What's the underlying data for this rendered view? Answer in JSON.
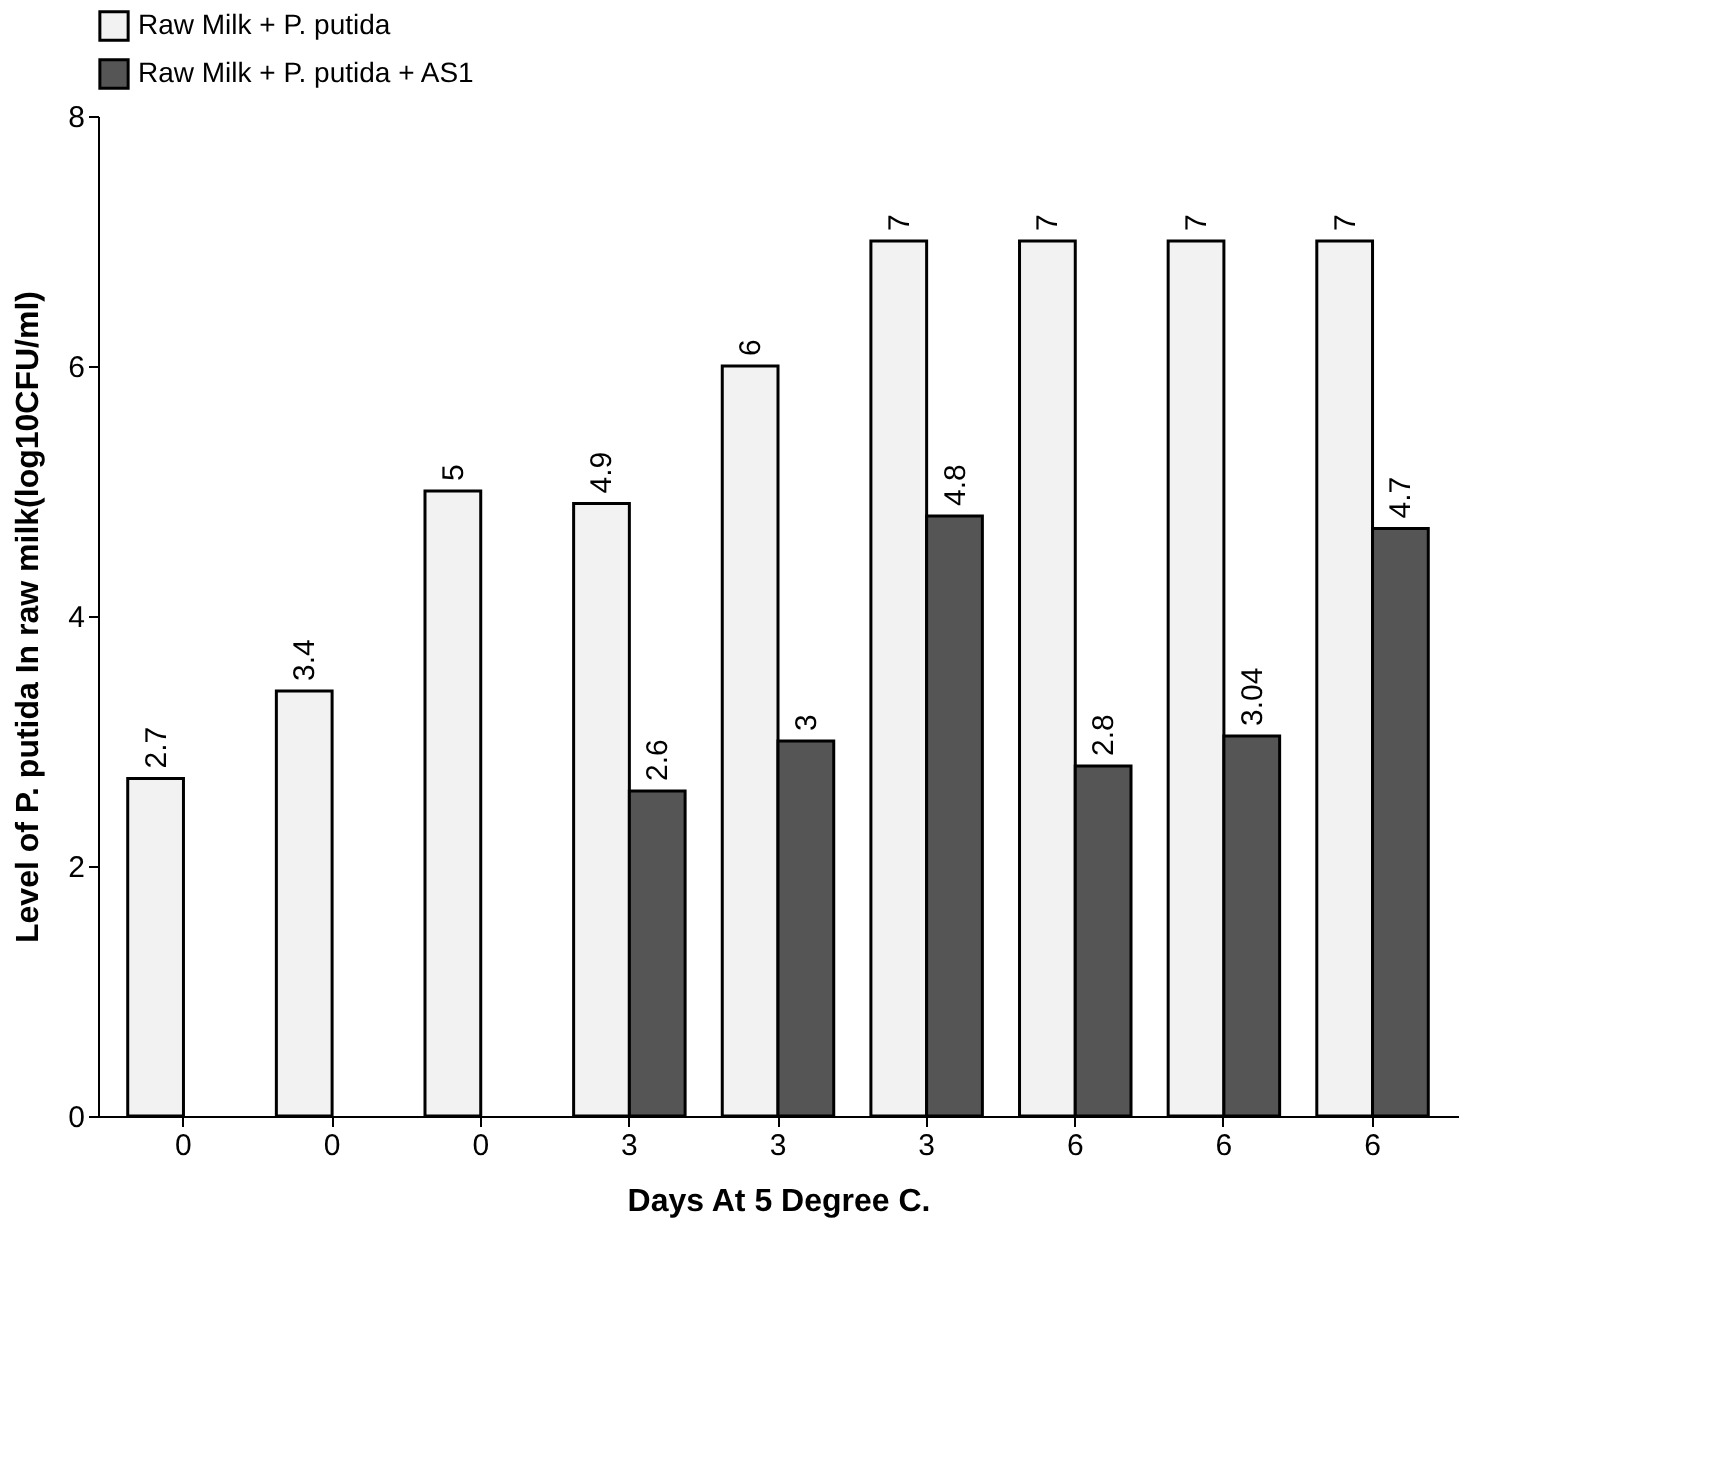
{
  "chart_data": {
    "type": "bar",
    "xlabel": "Days At 5 Degree C.",
    "ylabel": "Level of P. putida In raw milk(log10CFU/ml)",
    "categories": [
      "0",
      "0",
      "0",
      "3",
      "3",
      "3",
      "6",
      "6",
      "6"
    ],
    "series": [
      {
        "name": "Raw Milk + P. putida",
        "color": "#f2f2f2",
        "values": [
          2.7,
          3.4,
          5,
          4.9,
          6,
          7,
          7,
          7,
          7
        ]
      },
      {
        "name": "Raw Milk + P. putida + AS1",
        "color": "#555555",
        "values": [
          null,
          null,
          null,
          2.6,
          3,
          4.8,
          2.8,
          3.04,
          4.7
        ]
      }
    ],
    "ylim": [
      0,
      8
    ],
    "yticks": [
      0,
      2,
      4,
      6,
      8
    ],
    "grid": false,
    "legend": "top left",
    "data_labels": true
  }
}
